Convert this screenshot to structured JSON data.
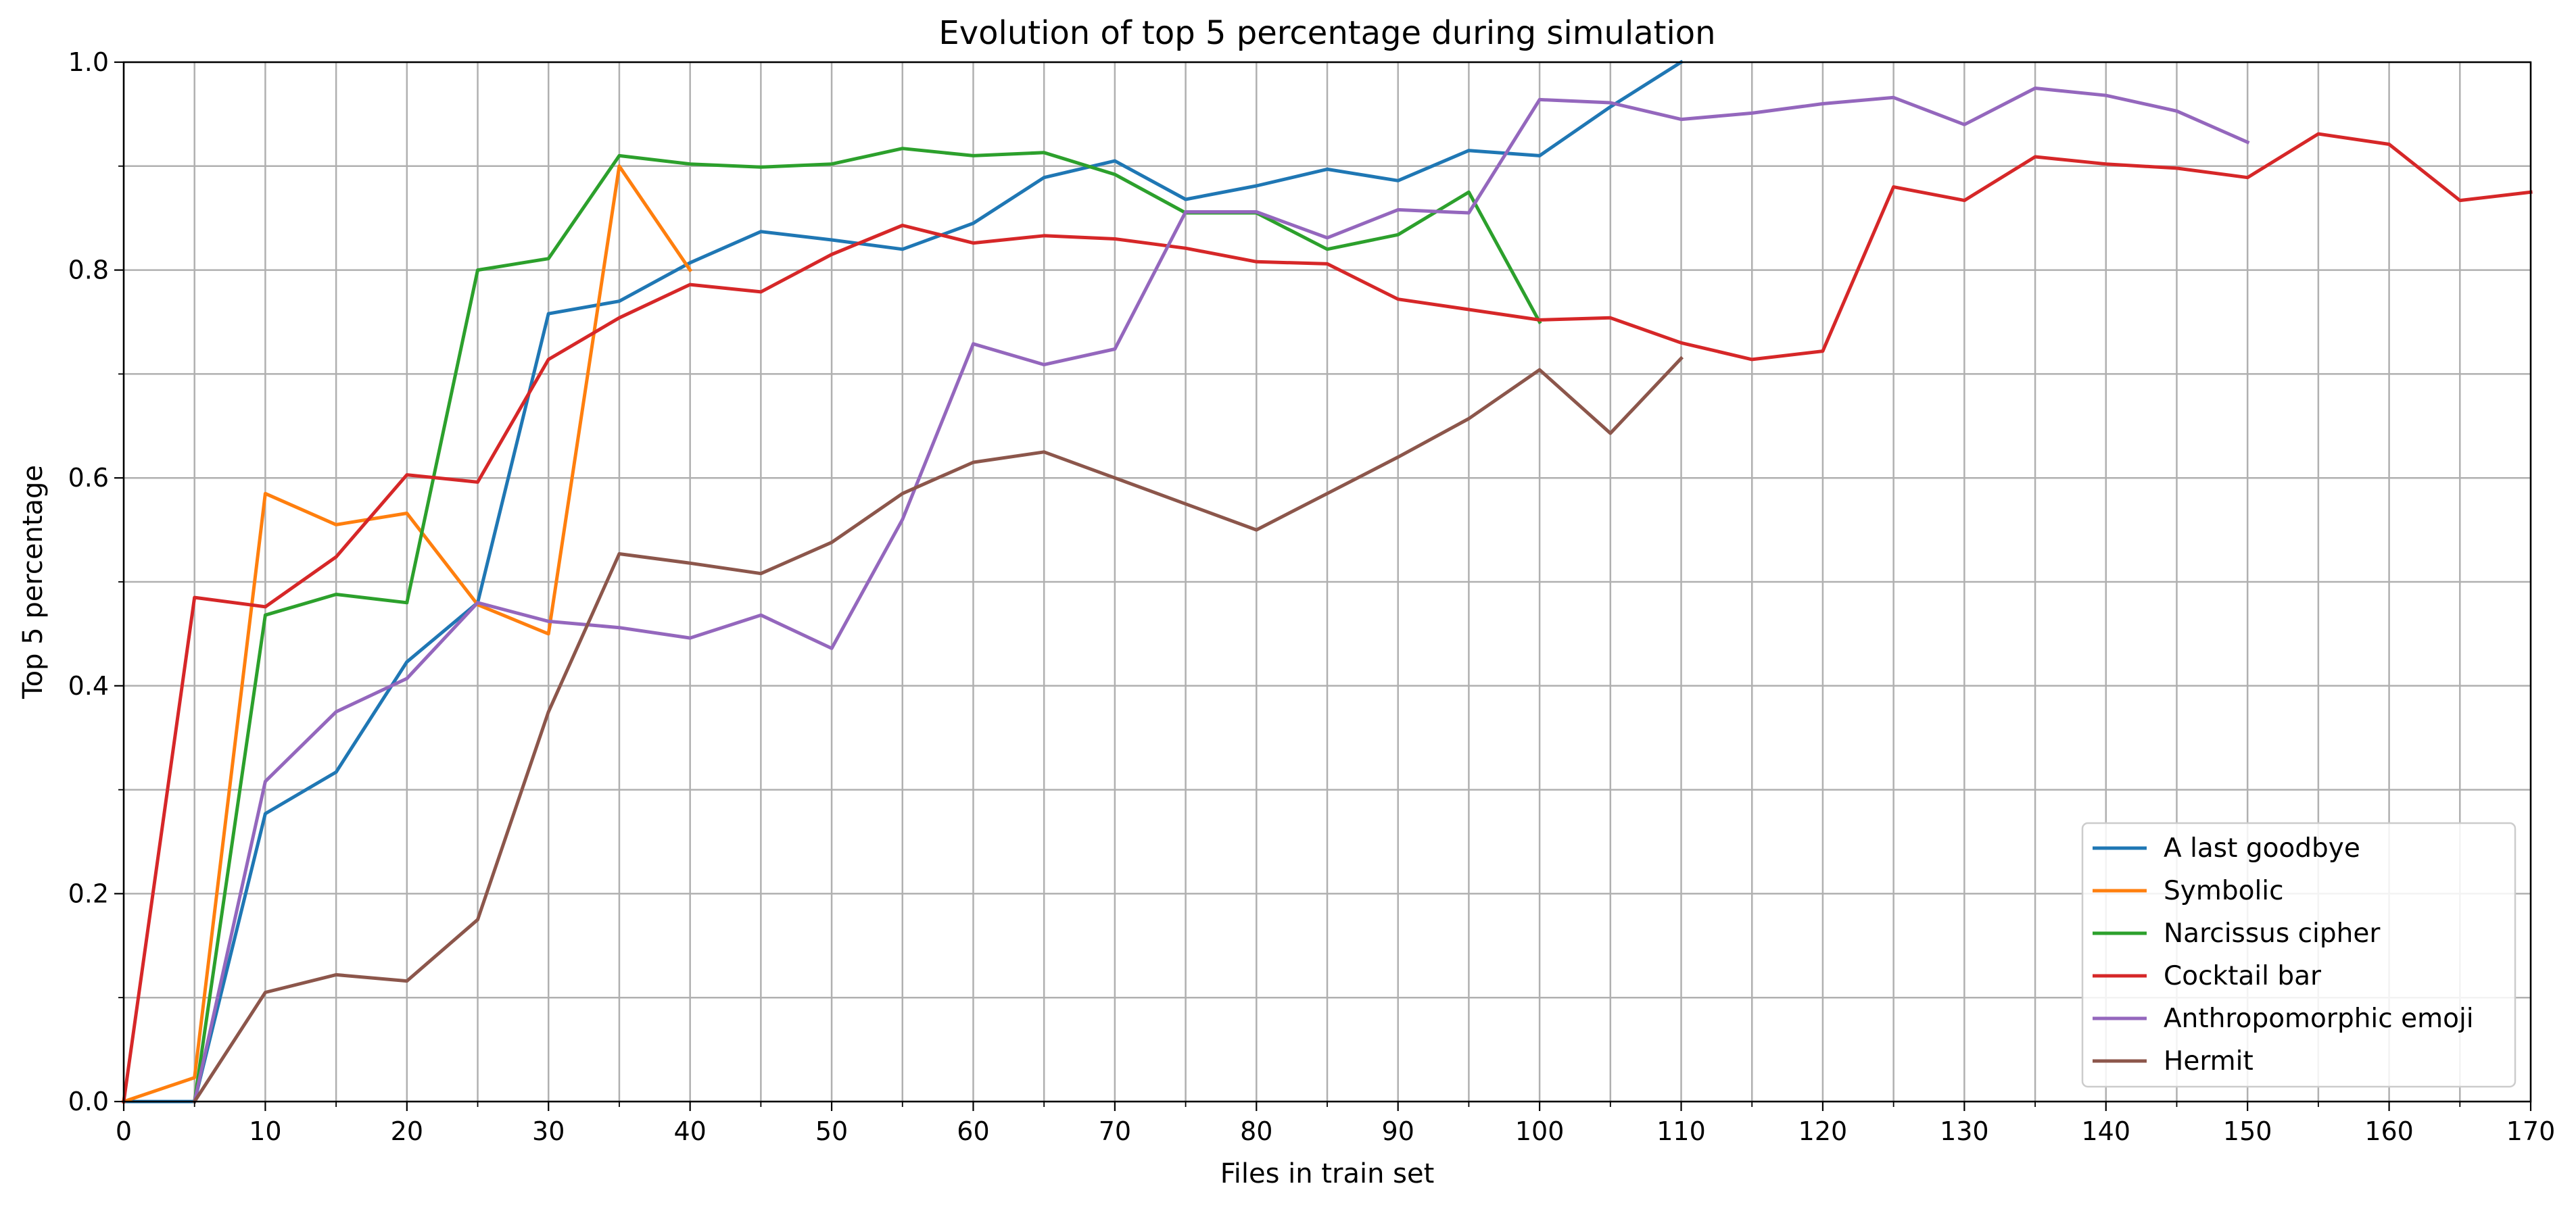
{
  "chart_data": {
    "type": "line",
    "title": "Evolution of top 5 percentage during simulation",
    "xlabel": "Files in train set",
    "ylabel": "Top 5 percentage",
    "xlim": [
      0,
      170
    ],
    "ylim": [
      0.0,
      1.0
    ],
    "xticks_major": [
      0,
      10,
      20,
      30,
      40,
      50,
      60,
      70,
      80,
      90,
      100,
      110,
      120,
      130,
      140,
      150,
      160,
      170
    ],
    "xticks_minor": [
      5,
      15,
      25,
      35,
      45,
      55,
      65,
      75,
      85,
      95,
      105,
      115,
      125,
      135,
      145,
      155,
      165
    ],
    "yticks_major": [
      0.0,
      0.2,
      0.4,
      0.6,
      0.8,
      1.0
    ],
    "yticks_minor": [
      0.1,
      0.3,
      0.5,
      0.7,
      0.9
    ],
    "ytick_labels": [
      "0.0",
      "0.2",
      "0.4",
      "0.6",
      "0.8",
      "1.0"
    ],
    "grid": true,
    "legend_position": "lower-right",
    "series": [
      {
        "name": "A last goodbye",
        "color": "#1f77b4",
        "x": [
          0,
          5,
          10,
          15,
          20,
          25,
          30,
          35,
          40,
          45,
          50,
          55,
          60,
          65,
          70,
          75,
          80,
          85,
          90,
          95,
          100,
          105,
          110
        ],
        "y": [
          0.0,
          0.0,
          0.277,
          0.317,
          0.423,
          0.48,
          0.758,
          0.77,
          0.807,
          0.837,
          0.829,
          0.82,
          0.845,
          0.889,
          0.905,
          0.868,
          0.881,
          0.897,
          0.886,
          0.915,
          0.91,
          0.957,
          1.0
        ]
      },
      {
        "name": "Symbolic",
        "color": "#ff7f0e",
        "x": [
          0,
          5,
          10,
          15,
          20,
          25,
          30,
          35,
          40
        ],
        "y": [
          0.0,
          0.023,
          0.585,
          0.555,
          0.566,
          0.478,
          0.45,
          0.9,
          0.8
        ]
      },
      {
        "name": "Narcissus cipher",
        "color": "#2ca02c",
        "x": [
          5,
          10,
          15,
          20,
          25,
          30,
          35,
          40,
          45,
          50,
          55,
          60,
          65,
          70,
          75,
          80,
          85,
          90,
          95,
          100
        ],
        "y": [
          0.0,
          0.468,
          0.488,
          0.48,
          0.8,
          0.811,
          0.91,
          0.902,
          0.899,
          0.902,
          0.917,
          0.91,
          0.913,
          0.892,
          0.855,
          0.855,
          0.82,
          0.834,
          0.875,
          0.75
        ]
      },
      {
        "name": "Cocktail bar",
        "color": "#d62728",
        "x": [
          0,
          5,
          10,
          15,
          20,
          25,
          30,
          35,
          40,
          45,
          50,
          55,
          60,
          65,
          70,
          75,
          80,
          85,
          90,
          95,
          100,
          105,
          110,
          115,
          120,
          125,
          130,
          135,
          140,
          145,
          150,
          155,
          160,
          165,
          170
        ],
        "y": [
          0.0,
          0.485,
          0.476,
          0.524,
          0.603,
          0.596,
          0.714,
          0.754,
          0.786,
          0.779,
          0.815,
          0.843,
          0.826,
          0.833,
          0.83,
          0.821,
          0.808,
          0.806,
          0.772,
          0.762,
          0.752,
          0.754,
          0.73,
          0.714,
          0.722,
          0.88,
          0.867,
          0.909,
          0.902,
          0.898,
          0.889,
          0.931,
          0.921,
          0.867,
          0.875
        ]
      },
      {
        "name": "Anthropomorphic emoji",
        "color": "#9467bd",
        "x": [
          5,
          10,
          15,
          20,
          25,
          30,
          35,
          40,
          45,
          50,
          55,
          60,
          65,
          70,
          75,
          80,
          85,
          90,
          95,
          100,
          105,
          110,
          115,
          120,
          125,
          130,
          135,
          140,
          145,
          150
        ],
        "y": [
          0.0,
          0.308,
          0.375,
          0.407,
          0.48,
          0.462,
          0.456,
          0.446,
          0.468,
          0.436,
          0.56,
          0.729,
          0.709,
          0.724,
          0.856,
          0.856,
          0.831,
          0.858,
          0.855,
          0.964,
          0.961,
          0.945,
          0.951,
          0.96,
          0.966,
          0.94,
          0.975,
          0.968,
          0.953,
          0.923
        ]
      },
      {
        "name": "Hermit",
        "color": "#8c564b",
        "x": [
          5,
          10,
          15,
          20,
          25,
          30,
          35,
          40,
          45,
          50,
          55,
          60,
          65,
          70,
          75,
          80,
          85,
          90,
          95,
          100,
          105,
          110
        ],
        "y": [
          0.0,
          0.105,
          0.122,
          0.116,
          0.175,
          0.375,
          0.527,
          0.518,
          0.508,
          0.538,
          0.585,
          0.615,
          0.625,
          0.6,
          0.575,
          0.55,
          0.585,
          0.62,
          0.657,
          0.704,
          0.643,
          0.715
        ]
      }
    ]
  }
}
